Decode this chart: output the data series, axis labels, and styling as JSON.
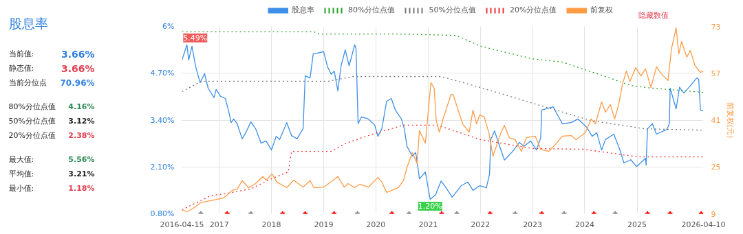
{
  "chart_data": [
    {
      "type": "other",
      "title": "股息率",
      "annotations": [
        "当前值:",
        "3.66%",
        "静态值:",
        "3.66%",
        "当前分位点",
        "70.96%",
        "80%分位点值",
        "4.16%",
        "50%分位点值",
        "3.12%",
        "20%分位点值",
        "2.38%",
        "最大值:",
        "5.56%",
        "平均值:",
        "3.21%",
        "最小值:",
        "1.18%"
      ]
    },
    {
      "type": "line",
      "y2label": "前复权(元)",
      "legend": "top",
      "grid": true,
      "xlim": [
        "2016-04-15",
        "2026-04-10"
      ],
      "xticks": [
        {
          "value": "2016-04-15",
          "label": "2016-04-15"
        },
        {
          "value": "2017-01-01",
          "label": "2017"
        },
        {
          "value": "2018-01-01",
          "label": "2018"
        },
        {
          "value": "2019-01-01",
          "label": "2019"
        },
        {
          "value": "2020-01-01",
          "label": "2020"
        },
        {
          "value": "2021-01-01",
          "label": "2021"
        },
        {
          "value": "2022-01-01",
          "label": "2022"
        },
        {
          "value": "2023-01-01",
          "label": "2023"
        },
        {
          "value": "2024-01-01",
          "label": "2024"
        },
        {
          "value": "2025-01-01",
          "label": "2025"
        },
        {
          "value": "2026-04-10",
          "label": "2026-04-10"
        }
      ],
      "ylim": [
        0.8,
        6
      ],
      "yticks": [
        {
          "value": 0.8,
          "label": "0.80%"
        },
        {
          "value": 2.1,
          "label": "2.10%"
        },
        {
          "value": 3.4,
          "label": "3.40%"
        },
        {
          "value": 4.7,
          "label": "4.70%"
        },
        {
          "value": 6,
          "label": "6%"
        }
      ],
      "y2lim": [
        9,
        73
      ],
      "y2ticks": [
        9,
        25,
        41,
        57,
        73
      ],
      "annotations": [
        "隐藏数值",
        {
          "text": "5.49%",
          "x": "2016-05-20",
          "y": 5.49
        },
        {
          "text": "1.20%",
          "x": "2021-01-15",
          "y": 1.2
        }
      ],
      "series": [
        {
          "name": "股息率",
          "color": "#3d8fe8",
          "line_style": "solid",
          "x": [
            "2016-04-15",
            "2016-05-20",
            "2016-06-01",
            "2016-06-24",
            "2016-07-20",
            "2016-08-20",
            "2016-09-20",
            "2016-10-15",
            "2016-11-25",
            "2016-12-10",
            "2017-01-10",
            "2017-02-12",
            "2017-03-06",
            "2017-03-25",
            "2017-04-12",
            "2017-05-06",
            "2017-06-10",
            "2017-07-08",
            "2017-08-10",
            "2017-09-12",
            "2017-10-20",
            "2017-11-24",
            "2018-01-01",
            "2018-02-03",
            "2018-02-27",
            "2018-04-18",
            "2018-05-21",
            "2018-06-28",
            "2018-08-10",
            "2018-08-25",
            "2018-09-28",
            "2018-10-20",
            "2018-11-18",
            "2019-01-01",
            "2019-01-28",
            "2019-02-22",
            "2019-03-16",
            "2019-04-10",
            "2019-05-03",
            "2019-06-01",
            "2019-06-28",
            "2019-08-06",
            "2019-08-15",
            "2019-08-30",
            "2019-09-22",
            "2019-11-10",
            "2019-12-24",
            "2020-01-15",
            "2020-02-12",
            "2020-03-16",
            "2020-04-18",
            "2020-05-16",
            "2020-06-28",
            "2020-07-18",
            "2020-08-06",
            "2020-09-12",
            "2020-10-06",
            "2020-11-01",
            "2020-12-12",
            "2021-01-15",
            "2021-02-22",
            "2021-04-01",
            "2021-05-06",
            "2021-06-18",
            "2021-08-20",
            "2021-10-06",
            "2021-11-10",
            "2021-12-28",
            "2022-02-12",
            "2022-03-06",
            "2022-03-15",
            "2022-04-10",
            "2022-05-16",
            "2022-06-18",
            "2022-08-15",
            "2022-10-01",
            "2022-11-01",
            "2022-12-18",
            "2023-01-28",
            "2023-02-27",
            "2023-03-06",
            "2023-05-25",
            "2023-07-28",
            "2023-09-28",
            "2023-11-15",
            "2024-01-15",
            "2024-02-22",
            "2024-03-25",
            "2024-04-28",
            "2024-05-25",
            "2024-07-22",
            "2024-09-01",
            "2024-10-01",
            "2024-11-18",
            "2024-12-28",
            "2025-03-01",
            "2025-03-05",
            "2025-03-15",
            "2025-04-18",
            "2025-05-16",
            "2025-07-28",
            "2025-08-15",
            "2025-08-20",
            "2025-10-01",
            "2025-10-25",
            "2025-11-24",
            "2026-01-06",
            "2026-02-22",
            "2026-03-08",
            "2026-03-20",
            "2026-04-10"
          ],
          "values": [
            5.07,
            5.49,
            5.07,
            5.45,
            4.88,
            4.44,
            4.69,
            4.29,
            4.02,
            4.25,
            4.06,
            4.0,
            3.68,
            3.33,
            3.43,
            3.3,
            2.88,
            3.07,
            3.35,
            3.16,
            2.76,
            2.82,
            2.57,
            2.95,
            2.86,
            3.33,
            2.97,
            2.88,
            3.16,
            4.63,
            4.57,
            5.24,
            5.26,
            5.3,
            4.88,
            4.67,
            4.76,
            4.21,
            4.91,
            5.35,
            4.91,
            5.49,
            5.39,
            3.3,
            3.49,
            3.43,
            3.26,
            2.95,
            3.16,
            3.92,
            4.0,
            3.68,
            3.43,
            3.16,
            2.67,
            2.4,
            2.5,
            1.77,
            1.96,
            1.2,
            1.33,
            1.71,
            1.52,
            1.26,
            1.58,
            1.68,
            1.45,
            1.58,
            1.52,
            1.9,
            2.86,
            3.1,
            2.67,
            2.29,
            2.53,
            2.78,
            2.67,
            2.82,
            2.57,
            2.91,
            3.68,
            3.77,
            3.3,
            3.33,
            3.43,
            3.2,
            2.95,
            3.05,
            2.57,
            2.86,
            3.01,
            2.59,
            2.21,
            2.3,
            2.11,
            2.34,
            2.15,
            3.16,
            3.3,
            3.01,
            3.14,
            3.3,
            4.29,
            3.71,
            4.31,
            4.15,
            4.34,
            4.57,
            4.53,
            3.68,
            3.66
          ]
        },
        {
          "name": "80%分位点值",
          "color": "#22a022",
          "line_style": "dotted",
          "x": [
            "2016-04-15",
            "2018-10-25",
            "2018-12-01",
            "2020-06-01",
            "2021-07-15",
            "2022-01-05",
            "2023-01-01",
            "2023-07-28",
            "2024-05-10",
            "2024-11-18",
            "2025-04-08",
            "2026-04-10"
          ],
          "values": [
            5.85,
            5.85,
            5.79,
            5.79,
            5.75,
            5.45,
            5.1,
            5.01,
            4.63,
            4.36,
            4.29,
            4.17
          ]
        },
        {
          "name": "50%分位点值",
          "color": "#777777",
          "line_style": "dotted",
          "x": [
            "2016-04-15",
            "2016-08-20",
            "2016-10-01",
            "2019-02-05",
            "2019-07-25",
            "2021-04-01",
            "2022-01-05",
            "2023-01-01",
            "2024-02-10",
            "2025-02-20",
            "2026-04-10"
          ],
          "values": [
            4.19,
            4.46,
            4.48,
            4.48,
            4.61,
            4.61,
            4.3,
            3.87,
            3.39,
            3.16,
            3.12
          ]
        },
        {
          "name": "20%分位点值",
          "color": "#f03030",
          "line_style": "dotted",
          "x": [
            "2016-04-15",
            "2016-11-01",
            "2017-02-01",
            "2017-08-10",
            "2018-01-01",
            "2018-04-28",
            "2018-05-21",
            "2019-02-22",
            "2019-06-08",
            "2019-12-10",
            "2020-07-12",
            "2021-03-05",
            "2022-01-01",
            "2023-01-01",
            "2023-12-25",
            "2025-01-05",
            "2026-04-10"
          ],
          "values": [
            0.91,
            1.3,
            1.35,
            1.49,
            1.77,
            1.96,
            2.53,
            2.53,
            2.76,
            3.01,
            3.26,
            3.26,
            2.86,
            2.61,
            2.59,
            2.38,
            2.38
          ]
        },
        {
          "name": "前复权",
          "color": "#ff9b45",
          "line_style": "solid",
          "axis": "y2",
          "x": [
            "2016-04-15",
            "2016-05-20",
            "2016-07-10",
            "2016-08-25",
            "2016-11-01",
            "2016-12-15",
            "2017-02-01",
            "2017-04-01",
            "2017-05-06",
            "2017-06-10",
            "2017-07-25",
            "2017-09-12",
            "2017-11-01",
            "2017-11-25",
            "2018-01-05",
            "2018-02-08",
            "2018-04-18",
            "2018-06-05",
            "2018-08-10",
            "2018-09-28",
            "2018-10-25",
            "2019-01-01",
            "2019-02-18",
            "2019-04-10",
            "2019-05-25",
            "2019-06-22",
            "2019-08-06",
            "2019-09-10",
            "2019-11-10",
            "2020-01-15",
            "2020-02-12",
            "2020-03-16",
            "2020-04-22",
            "2020-06-05",
            "2020-07-12",
            "2020-08-06",
            "2020-09-12",
            "2020-10-15",
            "2020-11-01",
            "2020-12-12",
            "2021-01-20",
            "2021-02-12",
            "2021-02-26",
            "2021-03-20",
            "2021-04-15",
            "2021-06-10",
            "2021-06-25",
            "2021-08-30",
            "2021-10-15",
            "2021-11-10",
            "2021-12-05",
            "2021-12-28",
            "2022-01-28",
            "2022-03-01",
            "2022-03-30",
            "2022-05-25",
            "2022-06-18",
            "2022-07-22",
            "2022-09-01",
            "2022-10-15",
            "2022-11-18",
            "2023-01-20",
            "2023-02-27",
            "2023-04-25",
            "2023-06-10",
            "2023-07-28",
            "2023-09-28",
            "2023-11-01",
            "2024-01-05",
            "2024-02-15",
            "2024-03-15",
            "2024-04-28",
            "2024-05-25",
            "2024-06-28",
            "2024-07-28",
            "2024-08-25",
            "2024-09-20",
            "2024-10-18",
            "2024-11-12",
            "2024-12-22",
            "2025-01-28",
            "2025-03-01",
            "2025-04-08",
            "2025-05-16",
            "2025-06-20",
            "2025-08-05",
            "2025-08-30",
            "2025-10-01",
            "2025-10-20",
            "2025-11-08",
            "2025-12-15",
            "2026-01-08",
            "2026-02-10",
            "2026-03-20",
            "2026-04-10"
          ],
          "values": [
            10.4,
            9.7,
            11.1,
            12.8,
            13.5,
            13.9,
            14.4,
            17.0,
            17.4,
            20.3,
            17.9,
            19.3,
            21.7,
            20.5,
            22.6,
            19.8,
            17.9,
            20.5,
            18.1,
            20.3,
            17.9,
            18.1,
            19.8,
            21.7,
            18.1,
            19.3,
            17.9,
            19.1,
            18.1,
            21.4,
            19.8,
            16.3,
            17.0,
            17.9,
            20.3,
            24.9,
            29.9,
            26.1,
            37.4,
            33.1,
            53.8,
            51.9,
            40.9,
            36.9,
            41.4,
            49.8,
            49.6,
            39.7,
            36.9,
            44.4,
            39.7,
            42.8,
            42.1,
            36.7,
            28.7,
            36.7,
            39.2,
            35.0,
            34.3,
            30.3,
            35.0,
            35.5,
            31.0,
            30.3,
            32.7,
            35.5,
            35.7,
            34.3,
            36.7,
            41.4,
            39.7,
            47.2,
            43.7,
            46.3,
            41.4,
            46.3,
            53.1,
            57.8,
            54.2,
            58.9,
            56.1,
            58.5,
            52.1,
            59.2,
            56.8,
            54.5,
            65.5,
            72.5,
            63.6,
            67.8,
            62.5,
            64.8,
            59.6,
            57.3,
            57.8
          ]
        },
        {
          "type": "scatter",
          "color": "#888888",
          "marker": "star",
          "x": [
            "2016-08-25",
            "2017-08-10",
            "2019-08-25",
            "2020-08-20",
            "2021-07-20",
            "2022-09-01",
            "2023-08-10",
            "2024-08-01"
          ],
          "values": [
            0.8,
            0.8,
            0.8,
            0.8,
            0.8,
            0.8,
            0.8,
            0.8
          ]
        },
        {
          "type": "scatter",
          "color": "#ff0000",
          "marker": "star",
          "x": [
            "2017-02-25",
            "2018-03-20",
            "2018-08-25",
            "2019-03-15",
            "2020-04-22",
            "2021-04-05",
            "2022-03-10",
            "2023-03-06",
            "2024-03-05",
            "2025-03-15",
            "2025-08-20",
            "2026-03-25"
          ],
          "values": [
            0.8,
            0.8,
            0.8,
            0.8,
            0.8,
            0.8,
            0.8,
            0.8,
            0.8,
            0.8,
            0.8,
            0.8
          ]
        }
      ]
    }
  ]
}
